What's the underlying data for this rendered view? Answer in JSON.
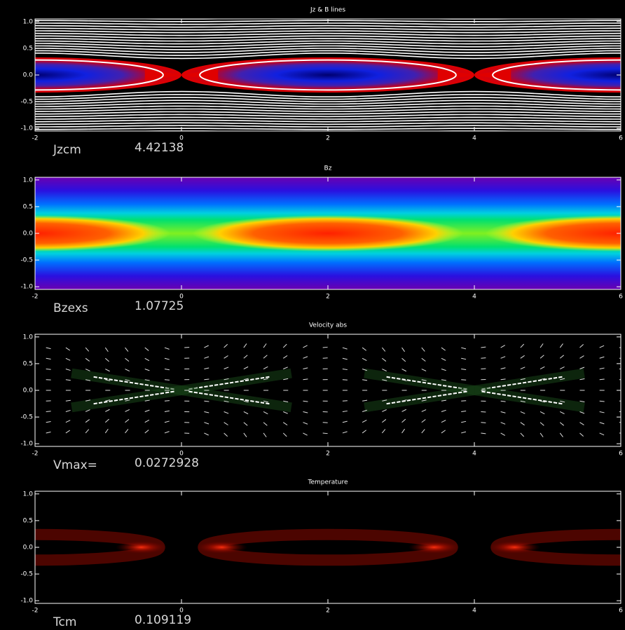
{
  "chart_data": [
    {
      "type": "contour",
      "title": "Jz & B lines",
      "xlim": [
        -2,
        6
      ],
      "ylim": [
        -1.05,
        1.05
      ],
      "xticks": [
        -2,
        0,
        2,
        4,
        6
      ],
      "yticks": [
        {
          "value": 1,
          "label": "1.0"
        },
        0.5,
        {
          "value": 0,
          "label": "0.0"
        },
        -0.5,
        {
          "value": -1,
          "label": "-1.0"
        }
      ],
      "annotation_label": "Jzcm",
      "annotation_value": "4.42138"
    },
    {
      "type": "heatmap",
      "colormap": "rainbow",
      "title": "Bz",
      "xlim": [
        -2,
        6
      ],
      "ylim": [
        -1.05,
        1.05
      ],
      "xticks": [
        -2,
        0,
        2,
        4,
        6
      ],
      "yticks": [
        {
          "value": 1,
          "label": "1.0"
        },
        0.5,
        {
          "value": 0,
          "label": "0.0"
        },
        -0.5,
        {
          "value": -1,
          "label": "-1.0"
        }
      ],
      "annotation_label": "Bzexs",
      "annotation_value": "1.07725"
    },
    {
      "type": "quiver",
      "title": "Velocity abs",
      "xlim": [
        -2,
        6
      ],
      "ylim": [
        -1.05,
        1.05
      ],
      "xticks": [
        -2,
        0,
        2,
        4,
        6
      ],
      "yticks": [
        {
          "value": 1,
          "label": "1.0"
        },
        0.5,
        {
          "value": 0,
          "label": "0.0"
        },
        -0.5,
        {
          "value": -1,
          "label": "-1.0"
        }
      ],
      "annotation_label": "Vmax=",
      "annotation_value": "0.0272928"
    },
    {
      "type": "heatmap",
      "colormap": "red-temperature",
      "title": "Temperature",
      "xlim": [
        -2,
        6
      ],
      "ylim": [
        -1.05,
        1.05
      ],
      "xticks": [
        -2,
        0,
        2,
        4,
        6
      ],
      "yticks": [
        {
          "value": 1,
          "label": "1.0"
        },
        0.5,
        {
          "value": 0,
          "label": "0.0"
        },
        -0.5,
        {
          "value": -1,
          "label": "-1.0"
        }
      ],
      "annotation_label": "Tcm",
      "annotation_value": "0.109119"
    }
  ]
}
